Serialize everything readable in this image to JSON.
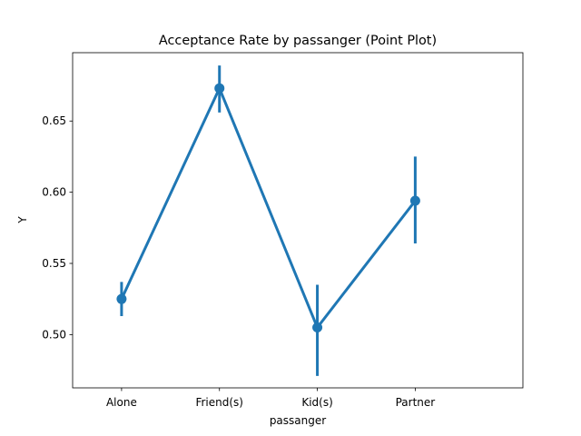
{
  "chart_data": {
    "type": "line",
    "title": "Acceptance Rate by passanger (Point Plot)",
    "xlabel": "passanger",
    "ylabel": "Y",
    "categories": [
      "Alone",
      "Friend(s)",
      "Kid(s)",
      "Partner"
    ],
    "series": [
      {
        "values": [
          0.525,
          0.673,
          0.505,
          0.594
        ],
        "ci_low": [
          0.513,
          0.656,
          0.471,
          0.564
        ],
        "ci_high": [
          0.537,
          0.689,
          0.535,
          0.625
        ],
        "color": "#1f77b4"
      }
    ],
    "ylim": [
      0.4626,
      0.698
    ],
    "yticks": [
      0.5,
      0.55,
      0.6,
      0.65
    ],
    "ytick_labels": [
      "0.50",
      "0.55",
      "0.60",
      "0.65"
    ],
    "grid": false,
    "legend": "none"
  }
}
